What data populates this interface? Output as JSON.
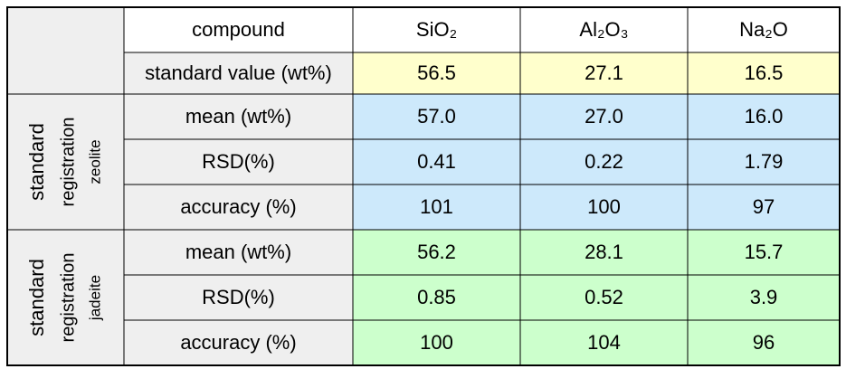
{
  "table": {
    "header": [
      "compound",
      "SiO₂",
      "Al₂O₃",
      "Na₂O"
    ],
    "standard": [
      "standard value (wt%)",
      "56.5",
      "27.1",
      "16.5"
    ],
    "groups": [
      {
        "label": [
          "standard",
          "registration",
          "zeolite"
        ],
        "rows": [
          [
            "mean (wt%)",
            "57.0",
            "27.0",
            "16.0"
          ],
          [
            "RSD(%)",
            "0.41",
            "0.22",
            "1.79"
          ],
          [
            "accuracy (%)",
            "101",
            "100",
            "97"
          ]
        ]
      },
      {
        "label": [
          "standard",
          "registration",
          "jadeite"
        ],
        "rows": [
          [
            "mean (wt%)",
            "56.2",
            "28.1",
            "15.7"
          ],
          [
            "RSD(%)",
            "0.85",
            "0.52",
            "3.9"
          ],
          [
            "accuracy (%)",
            "100",
            "104",
            "96"
          ]
        ]
      }
    ]
  }
}
